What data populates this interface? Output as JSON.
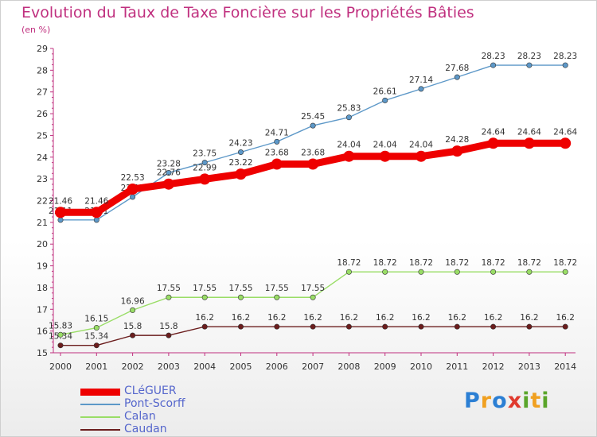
{
  "header": {
    "title": "Evolution du Taux de Taxe Foncière sur les Propriétés Bâties",
    "subtitle": "(en %)"
  },
  "brand": {
    "parts": [
      "P",
      "r",
      "o",
      "x",
      "i",
      "t",
      "i"
    ]
  },
  "chart_data": {
    "type": "line",
    "x": [
      "2000",
      "2001",
      "2002",
      "2003",
      "2004",
      "2005",
      "2006",
      "2007",
      "2008",
      "2009",
      "2010",
      "2011",
      "2012",
      "2013",
      "2014"
    ],
    "ylim": [
      15,
      29
    ],
    "yticks": [
      "15",
      "16",
      "17",
      "18",
      "19",
      "20",
      "21",
      "22",
      "23",
      "24",
      "25",
      "26",
      "27",
      "28",
      "29"
    ],
    "grid": false,
    "legend_position": "bottom-left",
    "series": [
      {
        "name": "Pont-Scorff",
        "color": "#5d98c8",
        "values": [
          21.11,
          21.11,
          22.17,
          23.28,
          23.75,
          24.23,
          24.71,
          25.45,
          25.83,
          26.61,
          27.14,
          27.68,
          28.23,
          28.23,
          28.23
        ],
        "labels": [
          "21.11",
          "21.11",
          "22.17",
          "23.28",
          "23.75",
          "24.23",
          "24.71",
          "25.45",
          "25.83",
          "26.61",
          "27.14",
          "27.68",
          "28.23",
          "28.23",
          "28.23"
        ]
      },
      {
        "name": "CLéGUER",
        "color": "#ee0000",
        "values": [
          21.46,
          21.46,
          22.53,
          22.76,
          22.99,
          23.22,
          23.68,
          23.68,
          24.04,
          24.04,
          24.04,
          24.28,
          24.64,
          24.64,
          24.64
        ],
        "labels": [
          "21.46",
          "21.46",
          "22.53",
          "22.76",
          "22.99",
          "23.22",
          "23.68",
          "23.68",
          "24.04",
          "24.04",
          "24.04",
          "24.28",
          "24.64",
          "24.64",
          "24.64"
        ]
      },
      {
        "name": "Calan",
        "color": "#99dd66",
        "values": [
          15.83,
          16.15,
          16.96,
          17.55,
          17.55,
          17.55,
          17.55,
          17.55,
          18.72,
          18.72,
          18.72,
          18.72,
          18.72,
          18.72,
          18.72
        ],
        "labels": [
          "15.83",
          "16.15",
          "16.96",
          "17.55",
          "17.55",
          "17.55",
          "17.55",
          "17.55",
          "18.72",
          "18.72",
          "18.72",
          "18.72",
          "18.72",
          "18.72",
          "18.72"
        ]
      },
      {
        "name": "Caudan",
        "color": "#6b1d1d",
        "values": [
          15.34,
          15.34,
          15.8,
          15.8,
          16.2,
          16.2,
          16.2,
          16.2,
          16.2,
          16.2,
          16.2,
          16.2,
          16.2,
          16.2,
          16.2
        ],
        "labels": [
          "15.34",
          "15.34",
          "15.8",
          "15.8",
          "16.2",
          "16.2",
          "16.2",
          "16.2",
          "16.2",
          "16.2",
          "16.2",
          "16.2",
          "16.2",
          "16.2",
          "16.2"
        ]
      }
    ],
    "legend_order": [
      "CLéGUER",
      "Pont-Scorff",
      "Calan",
      "Caudan"
    ]
  }
}
